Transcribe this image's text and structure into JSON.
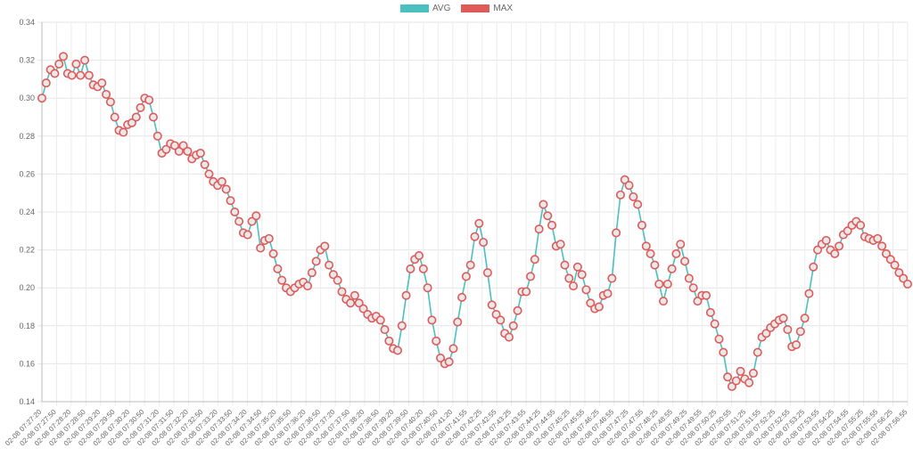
{
  "chart_data": {
    "type": "line",
    "legend": {
      "position": "top-center"
    },
    "series": [
      {
        "name": "AVG",
        "color": "#4bc0c0",
        "style": "line"
      },
      {
        "name": "MAX",
        "color": "#e05a5a",
        "style": "points"
      }
    ],
    "ylim": [
      0.14,
      0.34
    ],
    "yticks": [
      "0.14",
      "0.16",
      "0.18",
      "0.20",
      "0.22",
      "0.24",
      "0.26",
      "0.28",
      "0.30",
      "0.32",
      "0.34"
    ],
    "grid": true,
    "xticks": [
      "02-08 07:27:20",
      "02-08 07:27:50",
      "02-08 07:28:20",
      "02-08 07:28:50",
      "02-08 07:29:20",
      "02-08 07:29:50",
      "02-08 07:30:20",
      "02-08 07:30:50",
      "02-08 07:31:20",
      "02-08 07:31:50",
      "02-08 07:32:20",
      "02-08 07:32:50",
      "02-08 07:33:20",
      "02-08 07:33:50",
      "02-08 07:34:20",
      "02-08 07:34:50",
      "02-08 07:35:20",
      "02-08 07:35:50",
      "02-08 07:36:20",
      "02-08 07:36:50",
      "02-08 07:37:20",
      "02-08 07:37:50",
      "02-08 07:38:20",
      "02-08 07:38:50",
      "02-08 07:39:20",
      "02-08 07:39:50",
      "02-08 07:40:20",
      "02-08 07:40:50",
      "02-08 07:41:20",
      "02-08 07:41:55",
      "02-08 07:42:25",
      "02-08 07:42:55",
      "02-08 07:43:25",
      "02-08 07:43:55",
      "02-08 07:44:25",
      "02-08 07:44:55",
      "02-08 07:45:25",
      "02-08 07:45:55",
      "02-08 07:46:25",
      "02-08 07:46:55",
      "02-08 07:47:25",
      "02-08 07:47:55",
      "02-08 07:48:25",
      "02-08 07:48:55",
      "02-08 07:49:25",
      "02-08 07:49:55",
      "02-08 07:50:25",
      "02-08 07:50:55",
      "02-08 07:51:25",
      "02-08 07:51:55",
      "02-08 07:52:25",
      "02-08 07:52:55",
      "02-08 07:53:25",
      "02-08 07:53:55",
      "02-08 07:54:25",
      "02-08 07:54:55",
      "02-08 07:55:25",
      "02-08 07:55:55",
      "02-08 07:56:25",
      "02-08 07:56:55"
    ],
    "values": [
      0.3,
      0.308,
      0.315,
      0.313,
      0.318,
      0.322,
      0.313,
      0.312,
      0.318,
      0.312,
      0.32,
      0.312,
      0.307,
      0.306,
      0.308,
      0.302,
      0.298,
      0.29,
      0.283,
      0.282,
      0.286,
      0.287,
      0.29,
      0.295,
      0.3,
      0.299,
      0.29,
      0.28,
      0.271,
      0.273,
      0.276,
      0.275,
      0.272,
      0.275,
      0.272,
      0.268,
      0.27,
      0.271,
      0.265,
      0.26,
      0.256,
      0.254,
      0.256,
      0.252,
      0.246,
      0.24,
      0.235,
      0.229,
      0.228,
      0.235,
      0.238,
      0.221,
      0.225,
      0.226,
      0.218,
      0.21,
      0.204,
      0.2,
      0.198,
      0.2,
      0.202,
      0.203,
      0.201,
      0.208,
      0.214,
      0.22,
      0.222,
      0.212,
      0.207,
      0.204,
      0.198,
      0.194,
      0.192,
      0.196,
      0.192,
      0.189,
      0.186,
      0.184,
      0.185,
      0.183,
      0.178,
      0.172,
      0.168,
      0.167,
      0.18,
      0.196,
      0.21,
      0.215,
      0.217,
      0.21,
      0.2,
      0.183,
      0.172,
      0.163,
      0.16,
      0.161,
      0.168,
      0.182,
      0.195,
      0.206,
      0.212,
      0.227,
      0.234,
      0.224,
      0.208,
      0.191,
      0.186,
      0.183,
      0.176,
      0.174,
      0.18,
      0.188,
      0.198,
      0.198,
      0.206,
      0.215,
      0.231,
      0.244,
      0.238,
      0.233,
      0.222,
      0.223,
      0.212,
      0.205,
      0.201,
      0.211,
      0.207,
      0.199,
      0.192,
      0.189,
      0.19,
      0.196,
      0.197,
      0.205,
      0.229,
      0.249,
      0.257,
      0.254,
      0.248,
      0.244,
      0.233,
      0.222,
      0.218,
      0.212,
      0.202,
      0.193,
      0.202,
      0.21,
      0.218,
      0.223,
      0.214,
      0.205,
      0.2,
      0.193,
      0.196,
      0.196,
      0.187,
      0.181,
      0.173,
      0.166,
      0.153,
      0.148,
      0.151,
      0.156,
      0.152,
      0.15,
      0.155,
      0.166,
      0.174,
      0.176,
      0.179,
      0.181,
      0.183,
      0.184,
      0.178,
      0.169,
      0.17,
      0.177,
      0.184,
      0.197,
      0.211,
      0.22,
      0.223,
      0.225,
      0.22,
      0.218,
      0.222,
      0.228,
      0.23,
      0.233,
      0.235,
      0.233,
      0.227,
      0.226,
      0.225,
      0.226,
      0.222,
      0.218,
      0.215,
      0.212,
      0.208,
      0.205,
      0.202
    ]
  }
}
